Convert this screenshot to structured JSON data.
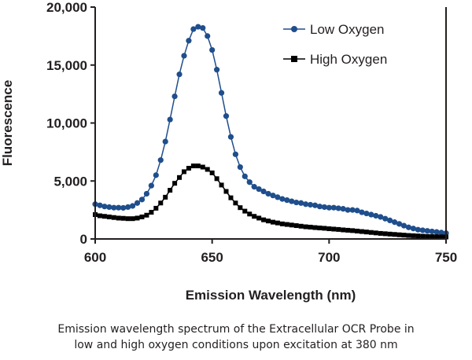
{
  "caption": {
    "line1": "Emission wavelength spectrum of the Extracellular OCR Probe in",
    "line2": "low and high oxygen conditions upon excitation at 380 nm"
  },
  "colors": {
    "low_oxygen": "#1f4e8c",
    "high_oxygen": "#000000",
    "axis": "#231f20"
  },
  "chart_data": {
    "type": "line",
    "title": "",
    "xlabel": "Emission Wavelength (nm)",
    "ylabel": "Fluorescence",
    "xlim": [
      600,
      750
    ],
    "ylim": [
      0,
      20000
    ],
    "x_ticks": [
      600,
      650,
      700,
      750
    ],
    "y_ticks": [
      0,
      5000,
      10000,
      15000,
      20000
    ],
    "x_tick_labels": [
      "600",
      "650",
      "700",
      "750"
    ],
    "y_tick_labels": [
      "0",
      "5,000",
      "10,000",
      "15,000",
      "20,000"
    ],
    "grid": false,
    "legend_position": "top-right",
    "series": [
      {
        "name": "Low Oxygen",
        "marker": "circle",
        "x": [
          600,
          602,
          604,
          606,
          608,
          610,
          612,
          614,
          616,
          618,
          620,
          622,
          624,
          626,
          628,
          630,
          632,
          634,
          636,
          638,
          640,
          642,
          644,
          646,
          648,
          650,
          652,
          654,
          656,
          658,
          660,
          662,
          664,
          666,
          668,
          670,
          672,
          674,
          676,
          678,
          680,
          682,
          684,
          686,
          688,
          690,
          692,
          694,
          696,
          698,
          700,
          702,
          704,
          706,
          708,
          710,
          712,
          714,
          716,
          718,
          720,
          722,
          724,
          726,
          728,
          730,
          732,
          734,
          736,
          738,
          740,
          742,
          744,
          746,
          748,
          750
        ],
        "values": [
          3000,
          2900,
          2800,
          2750,
          2700,
          2700,
          2680,
          2750,
          2850,
          3100,
          3400,
          3900,
          4600,
          5500,
          6800,
          8400,
          10300,
          12300,
          14200,
          15800,
          17100,
          18100,
          18300,
          18200,
          17500,
          16300,
          14600,
          12600,
          10600,
          8800,
          7300,
          6200,
          5400,
          4900,
          4500,
          4300,
          4100,
          3900,
          3750,
          3600,
          3450,
          3350,
          3250,
          3150,
          3100,
          3000,
          2950,
          2900,
          2800,
          2750,
          2700,
          2700,
          2650,
          2600,
          2500,
          2500,
          2450,
          2300,
          2200,
          2100,
          2000,
          1900,
          1750,
          1600,
          1450,
          1300,
          1150,
          1000,
          900,
          800,
          750,
          700,
          650,
          600,
          550,
          500
        ]
      },
      {
        "name": "High Oxygen",
        "marker": "square",
        "x": [
          600,
          602,
          604,
          606,
          608,
          610,
          612,
          614,
          616,
          618,
          620,
          622,
          624,
          626,
          628,
          630,
          632,
          634,
          636,
          638,
          640,
          642,
          644,
          646,
          648,
          650,
          652,
          654,
          656,
          658,
          660,
          662,
          664,
          666,
          668,
          670,
          672,
          674,
          676,
          678,
          680,
          682,
          684,
          686,
          688,
          690,
          692,
          694,
          696,
          698,
          700,
          702,
          704,
          706,
          708,
          710,
          712,
          714,
          716,
          718,
          720,
          722,
          724,
          726,
          728,
          730,
          732,
          734,
          736,
          738,
          740,
          742,
          744,
          746,
          748,
          750
        ],
        "values": [
          2100,
          2000,
          1950,
          1900,
          1850,
          1800,
          1780,
          1750,
          1750,
          1800,
          1900,
          2050,
          2300,
          2650,
          3100,
          3600,
          4200,
          4800,
          5300,
          5800,
          6100,
          6300,
          6300,
          6200,
          6000,
          5700,
          5200,
          4650,
          4100,
          3550,
          3100,
          2700,
          2400,
          2150,
          1950,
          1800,
          1650,
          1550,
          1450,
          1380,
          1300,
          1250,
          1200,
          1150,
          1100,
          1050,
          1020,
          980,
          950,
          920,
          880,
          850,
          820,
          780,
          750,
          720,
          680,
          640,
          600,
          560,
          520,
          480,
          450,
          420,
          390,
          360,
          330,
          300,
          280,
          260,
          240,
          220,
          200,
          190,
          180,
          170
        ]
      }
    ]
  }
}
